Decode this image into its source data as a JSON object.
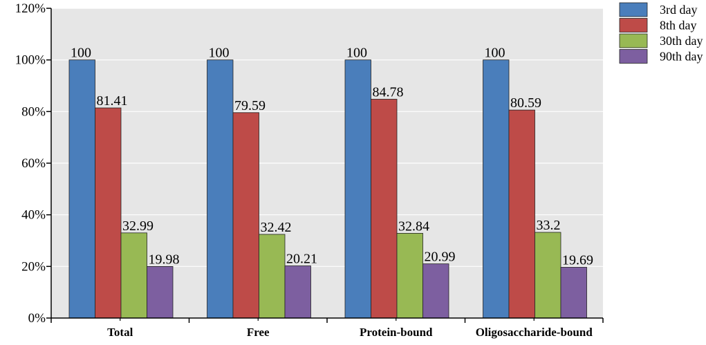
{
  "chart_data": {
    "type": "bar",
    "title": "",
    "xlabel": "",
    "ylabel": "",
    "categories": [
      "Total",
      "Free",
      "Protein-bound",
      "Oligosaccharide-bound"
    ],
    "series": [
      {
        "name": "3rd day",
        "color": "#4a7ebb",
        "values": [
          100,
          100,
          100,
          100
        ],
        "labels": [
          "100",
          "100",
          "100",
          "100"
        ]
      },
      {
        "name": "8th day",
        "color": "#be4b48",
        "values": [
          81.41,
          79.59,
          84.78,
          80.59
        ],
        "labels": [
          "81.41",
          "79.59",
          "84.78",
          "80.59"
        ]
      },
      {
        "name": "30th day",
        "color": "#98b954",
        "values": [
          32.99,
          32.42,
          32.84,
          33.2
        ],
        "labels": [
          "32.99",
          "32.42",
          "32.84",
          "33.2"
        ]
      },
      {
        "name": "90th day",
        "color": "#7d5fa0",
        "values": [
          19.98,
          20.21,
          20.99,
          19.69
        ],
        "labels": [
          "19.98",
          "20.21",
          "20.99",
          "19.69"
        ]
      }
    ],
    "ylim": [
      0,
      120
    ],
    "yticks": [
      0,
      20,
      40,
      60,
      80,
      100,
      120
    ],
    "ytick_labels": [
      "0%",
      "20%",
      "40%",
      "60%",
      "80%",
      "100%",
      "120%"
    ],
    "grid": true,
    "legend_position": "right"
  },
  "colors": {
    "plot_background": "#e6e6e6",
    "gridline": "#ffffff",
    "axis": "#000000"
  }
}
